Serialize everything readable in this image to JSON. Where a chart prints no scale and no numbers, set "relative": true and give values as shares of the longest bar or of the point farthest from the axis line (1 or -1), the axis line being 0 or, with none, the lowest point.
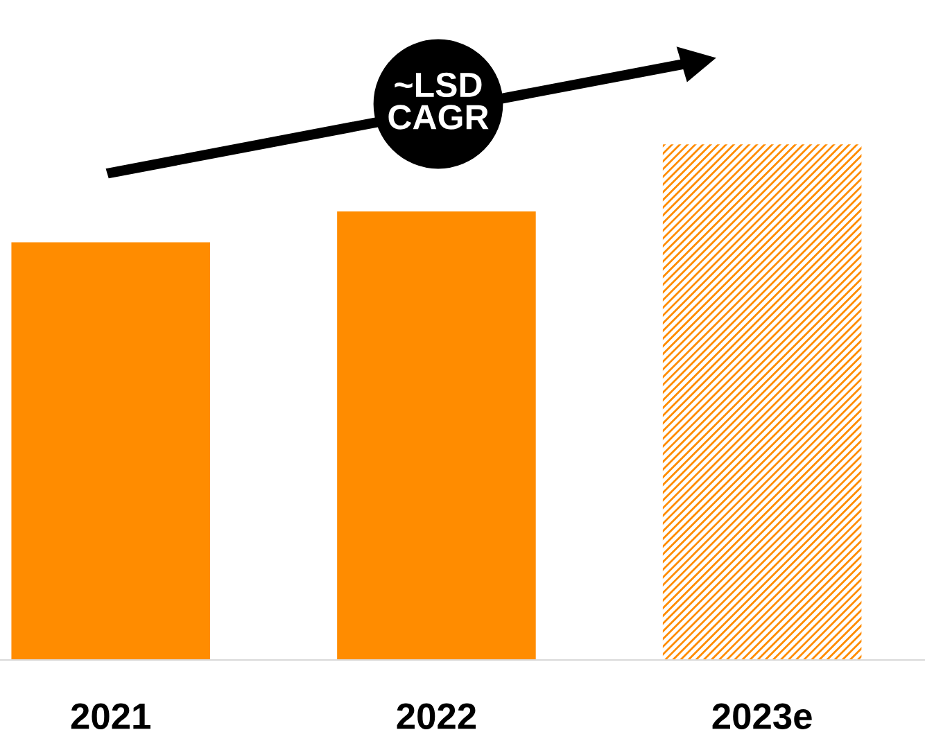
{
  "chart_data": {
    "type": "bar",
    "relative": true,
    "categories": [
      "2021",
      "2022",
      "2023e"
    ],
    "values": [
      0.81,
      0.87,
      1
    ],
    "colors": [
      "#ff8c00",
      "#ff8c00",
      "#ff8c00"
    ],
    "annotations": [
      "~LSD\nCAGR"
    ],
    "grid": false,
    "legend": false
  }
}
